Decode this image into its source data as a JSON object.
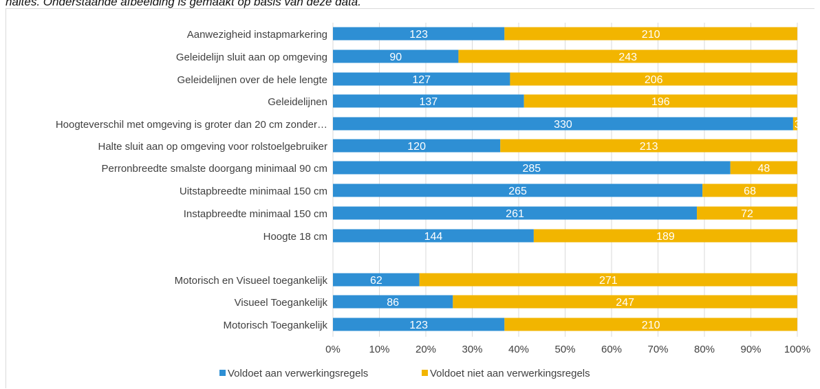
{
  "caption": "haltes. Onderstaande afbeelding is gemaakt op basis van deze data.",
  "colors": {
    "series1": "#2E8FD4",
    "series2": "#F2B500",
    "grid": "#d9d9d9",
    "text": "#404040"
  },
  "chart_data": {
    "type": "bar",
    "orientation": "horizontal",
    "stacking": "percent",
    "title": "",
    "xlabel": "",
    "ylabel": "",
    "xlim": [
      0,
      100
    ],
    "x_ticks": [
      "0%",
      "10%",
      "20%",
      "30%",
      "40%",
      "50%",
      "60%",
      "70%",
      "80%",
      "90%",
      "100%"
    ],
    "grid": true,
    "legend_position": "bottom",
    "categories": [
      "Aanwezigheid instapmarkering",
      "Geleidelijn sluit aan op omgeving",
      "Geleidelijnen over de hele lengte",
      "Geleidelijnen",
      "Hoogteverschil met omgeving is groter dan 20 cm zonder…",
      "Halte sluit aan op omgeving voor rolstoelgebruiker",
      "Perronbreedte smalste doorgang minimaal 90 cm",
      "Uitstapbreedte minimaal 150 cm",
      "Instapbreedte minimaal 150 cm",
      "Hoogte 18 cm",
      "Motorisch en Visueel toegankelijk",
      "Visueel Toegankelijk",
      "Motorisch Toegankelijk"
    ],
    "series": [
      {
        "name": "Voldoet aan verwerkingsregels",
        "values": [
          123,
          90,
          127,
          137,
          330,
          120,
          285,
          265,
          261,
          144,
          62,
          86,
          123
        ]
      },
      {
        "name": "Voldoet niet aan verwerkingsregels",
        "values": [
          210,
          243,
          206,
          196,
          3,
          213,
          48,
          68,
          72,
          189,
          271,
          247,
          210
        ]
      }
    ]
  }
}
